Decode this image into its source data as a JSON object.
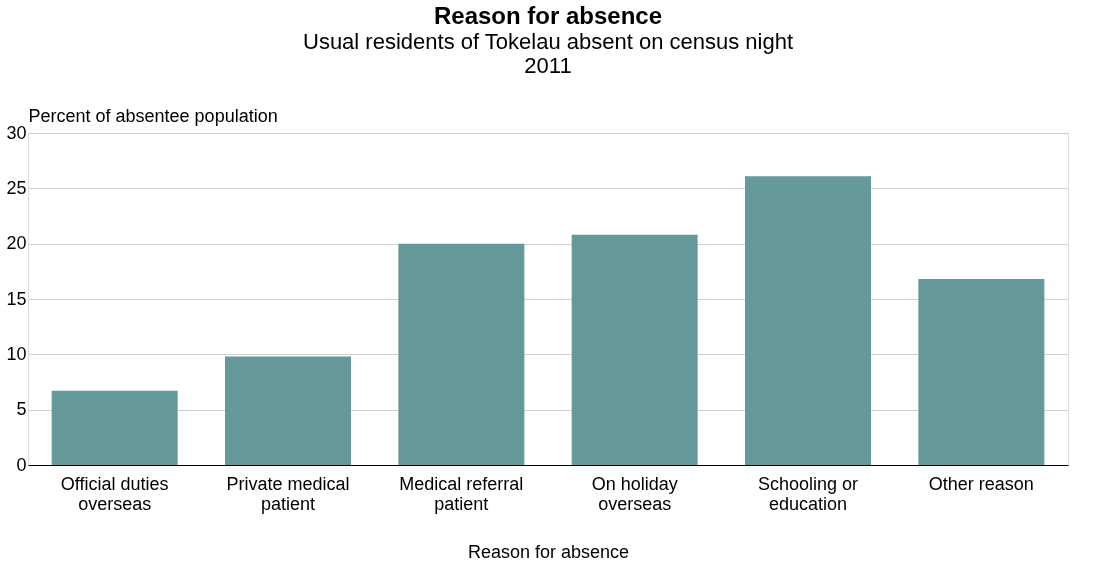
{
  "chart_data": {
    "type": "bar",
    "title": "Reason for absence",
    "subtitle": "Usual residents of Tokelau absent on census night\n2011",
    "categories": [
      "Official duties\noverseas",
      "Private medical\npatient",
      "Medical referral\npatient",
      "On holiday\noverseas",
      "Schooling or\neducation",
      "Other reason"
    ],
    "values": [
      6.7,
      9.8,
      20.0,
      20.8,
      26.1,
      16.8
    ],
    "color": "#669999",
    "xlabel": "Reason for absence",
    "ylabel": "Percent of absentee population",
    "ylim": [
      0,
      30
    ],
    "yticks": [
      0,
      5,
      10,
      15,
      20,
      25,
      30
    ],
    "grid": "y"
  }
}
